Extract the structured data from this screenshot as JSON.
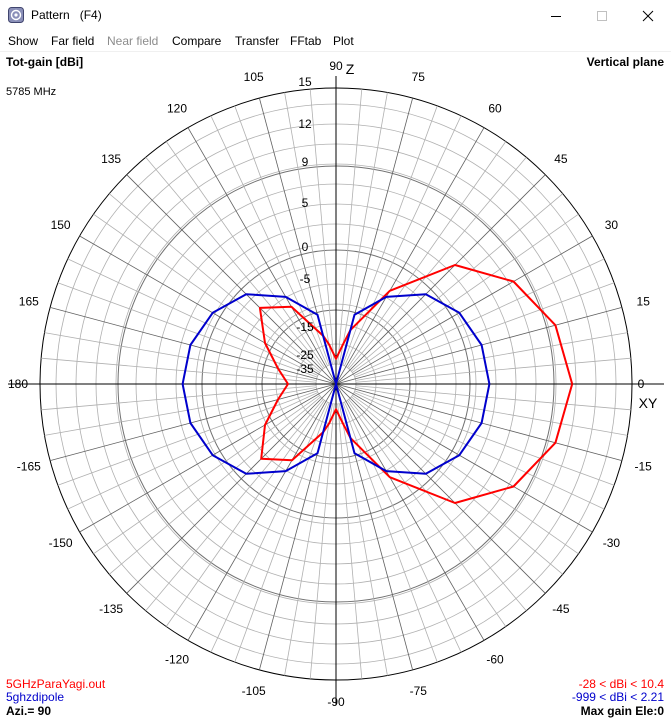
{
  "window": {
    "title": "Pattern   (F4)",
    "icon": "antenna-app-icon",
    "controls": [
      "minimize-icon",
      "maximize-icon",
      "close-icon"
    ]
  },
  "menu": [
    {
      "label": "Show",
      "enabled": true
    },
    {
      "label": "Far field",
      "enabled": true
    },
    {
      "label": "Near field",
      "enabled": false
    },
    {
      "label": "Compare",
      "enabled": true
    },
    {
      "label": "Transfer",
      "enabled": true
    },
    {
      "label": "FFtab",
      "enabled": true
    },
    {
      "label": "Plot",
      "enabled": true
    }
  ],
  "header": {
    "quantity": "Tot-gain [dBi]",
    "plane": "Vertical plane",
    "frequency": "5785 MHz"
  },
  "axes": {
    "z_label": "Z",
    "xy_label": "XY",
    "angle_labels": [
      "0",
      "15",
      "30",
      "45",
      "60",
      "75",
      "90",
      "105",
      "120",
      "135",
      "150",
      "165",
      "180",
      "-165",
      "-150",
      "-135",
      "-120",
      "-105",
      "-90",
      "-75",
      "-60",
      "-45",
      "-30",
      "-15"
    ],
    "radial_labels": [
      "15",
      "12",
      "9",
      "5",
      "0",
      "-5",
      "-15",
      "-25",
      "-35"
    ]
  },
  "footer": {
    "trace1_file": "5GHzParaYagi.out",
    "trace1_range": "-28 < dBi < 10.4",
    "trace2_file": "5ghzdipole",
    "trace2_range": "-999 < dBi < 2.21",
    "azimuth": "Azi.= 90",
    "max_gain": "Max gain Ele:0"
  },
  "chart_data": {
    "type": "polar",
    "angle_unit": "degrees",
    "radial_unit": "dBi",
    "radial_ticks": [
      15,
      12,
      9,
      5,
      0,
      -5,
      -15,
      -25,
      -35
    ],
    "angular_ticks_step": 15,
    "grid": true,
    "series": [
      {
        "name": "5GHzParaYagi.out",
        "color": "#ff0000",
        "angles": [
          0,
          15,
          30,
          45,
          60,
          75,
          80,
          90,
          100,
          105,
          120,
          135,
          150,
          165,
          180,
          195,
          210,
          225,
          240,
          255,
          260,
          270,
          280,
          285,
          300,
          315,
          330,
          345,
          360
        ],
        "values": [
          10.4,
          9.7,
          7.7,
          3.9,
          -3.0,
          -13.5,
          -20,
          -28,
          -20,
          -15.0,
          -5.2,
          -3.0,
          -7.0,
          -12.5,
          -16.0,
          -12.5,
          -7.0,
          -3.2,
          -5.5,
          -15.0,
          -20,
          -28,
          -20,
          -13.5,
          -3.0,
          3.9,
          7.7,
          9.7,
          10.4
        ]
      },
      {
        "name": "5ghzdipole",
        "color": "#0000cc",
        "note_range": "-999 < dBi < 2.21",
        "angles": [
          0,
          15,
          30,
          45,
          60,
          75,
          90,
          105,
          120,
          135,
          150,
          165,
          180,
          195,
          210,
          225,
          240,
          255,
          270,
          285,
          300,
          315,
          330,
          345,
          360
        ],
        "values": [
          2.21,
          1.9,
          0.95,
          -0.8,
          -3.8,
          -9.6,
          -999,
          -9.6,
          -3.8,
          -0.8,
          0.95,
          1.9,
          2.21,
          1.9,
          0.95,
          -0.8,
          -3.8,
          -9.6,
          -999,
          -9.6,
          -3.8,
          -0.8,
          0.95,
          1.9,
          2.21
        ]
      }
    ],
    "colors": {
      "grid": "#999999",
      "axes": "#000000",
      "trace1": "#ff0000",
      "trace2": "#0000cc"
    }
  }
}
